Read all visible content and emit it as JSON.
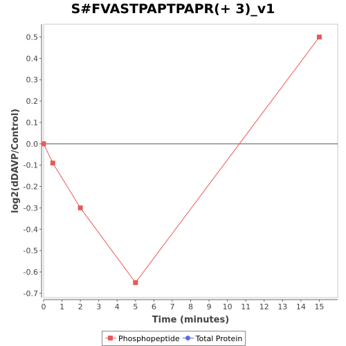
{
  "chart_data": {
    "type": "line",
    "title": "S#FVASTPAPTPAPR(+ 3)_v1",
    "xlabel": "Time (minutes)",
    "ylabel": "log2(dDAVP/Control)",
    "xlim": [
      0,
      16
    ],
    "ylim": [
      -0.72,
      0.56
    ],
    "x_ticks": [
      0,
      1,
      2,
      3,
      4,
      5,
      6,
      7,
      8,
      9,
      10,
      11,
      12,
      13,
      14,
      15
    ],
    "y_ticks": [
      -0.7,
      -0.6,
      -0.5,
      -0.4,
      -0.3,
      -0.2,
      -0.1,
      0.0,
      0.1,
      0.2,
      0.3,
      0.4,
      0.5
    ],
    "grid": false,
    "zero_line": true,
    "legend_position": "bottom",
    "series": [
      {
        "name": "Phosphopeptide",
        "color": "#e8595a",
        "marker": "square",
        "x": [
          0,
          0.5,
          2,
          5,
          15
        ],
        "y": [
          0.0,
          -0.09,
          -0.3,
          -0.65,
          0.5
        ]
      },
      {
        "name": "Total Protein",
        "color": "#5b6be8",
        "marker": "circle",
        "x": [],
        "y": []
      }
    ]
  }
}
